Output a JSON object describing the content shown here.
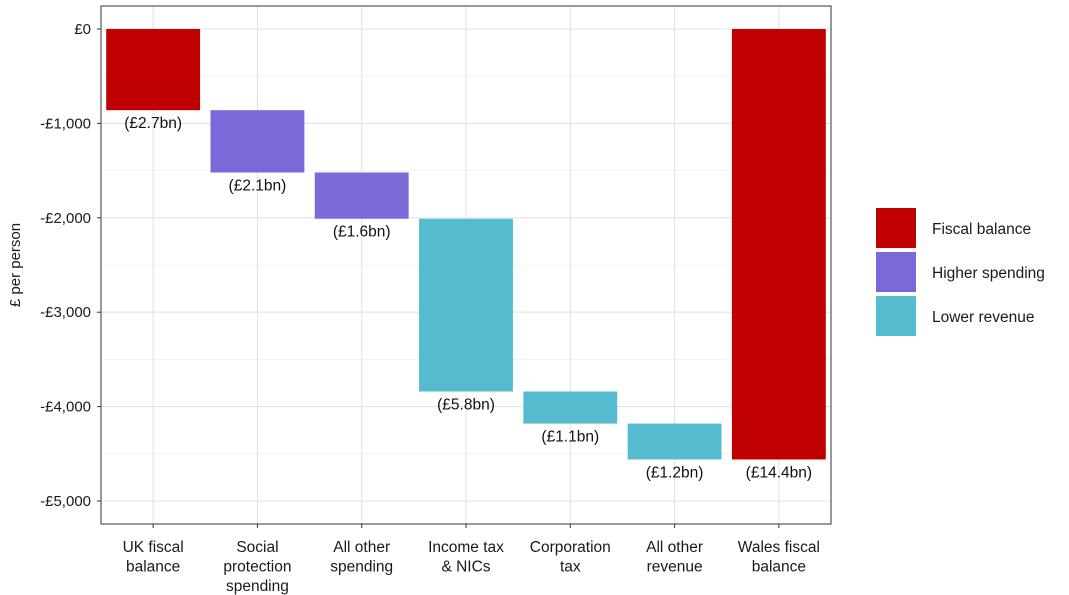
{
  "chart_data": {
    "type": "bar",
    "subtype": "waterfall",
    "ylabel": "£ per person",
    "ylim": [
      -5200,
      50
    ],
    "yticks": [
      0,
      -1000,
      -2000,
      -3000,
      -4000,
      -5000
    ],
    "ytick_labels": [
      "£0",
      "-£1,000",
      "-£2,000",
      "-£3,000",
      "-£4,000",
      "-£5,000"
    ],
    "grid": true,
    "legend_position": "right",
    "legend": [
      {
        "name": "Fiscal balance",
        "color": "#c00000"
      },
      {
        "name": "Higher spending",
        "color": "#7b68d9"
      },
      {
        "name": "Lower revenue",
        "color": "#55bccf"
      }
    ],
    "bars": [
      {
        "category": [
          "UK fiscal",
          "balance"
        ],
        "start": 0,
        "end": -860,
        "group": "Fiscal balance",
        "label": "(£2.7bn)"
      },
      {
        "category": [
          "Social",
          "protection",
          "spending"
        ],
        "start": -860,
        "end": -1520,
        "group": "Higher spending",
        "label": "(£2.1bn)"
      },
      {
        "category": [
          "All other",
          "spending"
        ],
        "start": -1520,
        "end": -2010,
        "group": "Higher spending",
        "label": "(£1.6bn)"
      },
      {
        "category": [
          "Income tax",
          "& NICs"
        ],
        "start": -2010,
        "end": -3840,
        "group": "Lower revenue",
        "label": "(£5.8bn)"
      },
      {
        "category": [
          "Corporation",
          "tax"
        ],
        "start": -3840,
        "end": -4180,
        "group": "Lower revenue",
        "label": "(£1.1bn)"
      },
      {
        "category": [
          "All other",
          "revenue"
        ],
        "start": -4180,
        "end": -4560,
        "group": "Lower revenue",
        "label": "(£1.2bn)"
      },
      {
        "category": [
          "Wales fiscal",
          "balance"
        ],
        "start": 0,
        "end": -4560,
        "group": "Fiscal balance",
        "label": "(£14.4bn)"
      }
    ]
  }
}
